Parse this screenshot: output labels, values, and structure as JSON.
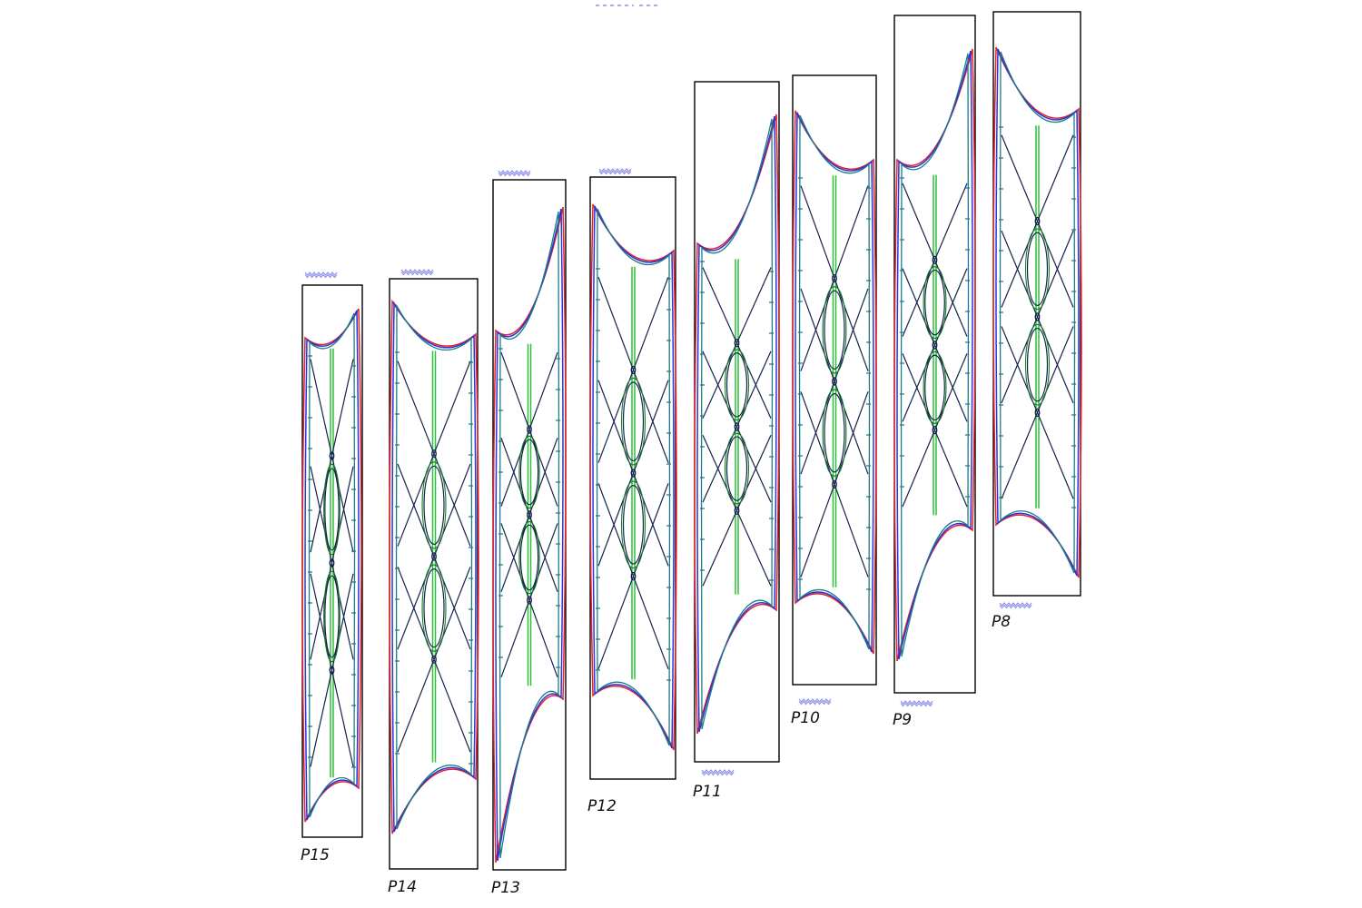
{
  "panels": [
    {
      "id": "p15",
      "label": "P15"
    },
    {
      "id": "p14",
      "label": "P14"
    },
    {
      "id": "p13",
      "label": "P13"
    },
    {
      "id": "p12",
      "label": "P12"
    },
    {
      "id": "p11",
      "label": "P11"
    },
    {
      "id": "p10",
      "label": "P10"
    },
    {
      "id": "p9",
      "label": "P9"
    },
    {
      "id": "p8",
      "label": "P8"
    }
  ],
  "colors": {
    "outer_outline": "#e8202a",
    "inner_outline": "#2a35d8",
    "offset_outline": "#1d7b87",
    "strut_lines": "#14224d",
    "centre_spine": "#2fbf3a",
    "frame": "#000000",
    "squiggle_marks": "#8d8fe6"
  }
}
